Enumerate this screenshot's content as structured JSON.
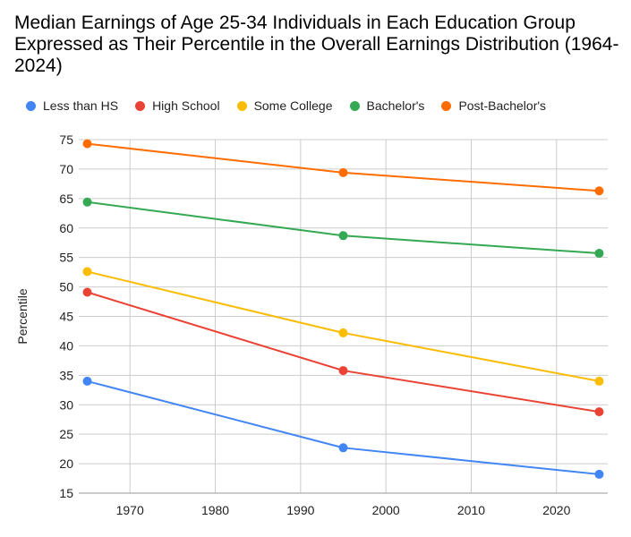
{
  "chart_data": {
    "type": "line",
    "title": "Median Earnings of Age 25-34 Individuals in Each Education Group Expressed as Their Percentile in the Overall Earnings Distribution (1964-2024)",
    "xlabel": "",
    "ylabel": "Percentile",
    "xlim": [
      1964,
      2026
    ],
    "ylim": [
      15,
      75
    ],
    "xticks": [
      1970,
      1980,
      1990,
      2000,
      2010,
      2020
    ],
    "yticks": [
      15,
      20,
      25,
      30,
      35,
      40,
      45,
      50,
      55,
      60,
      65,
      70,
      75
    ],
    "grid": true,
    "legend_position": "top",
    "x": [
      1965,
      1995,
      2025
    ],
    "series": [
      {
        "name": "Less than HS",
        "color": "#4285f4",
        "values": [
          34.0,
          22.7,
          18.2
        ]
      },
      {
        "name": "High School",
        "color": "#ea4335",
        "values": [
          49.1,
          35.8,
          28.8
        ]
      },
      {
        "name": "Some College",
        "color": "#fbbc04",
        "values": [
          52.6,
          42.2,
          34.0
        ]
      },
      {
        "name": "Bachelor's",
        "color": "#34a853",
        "values": [
          64.4,
          58.7,
          55.7
        ]
      },
      {
        "name": "Post-Bachelor's",
        "color": "#ff6d01",
        "values": [
          74.3,
          69.4,
          66.3
        ]
      }
    ]
  }
}
